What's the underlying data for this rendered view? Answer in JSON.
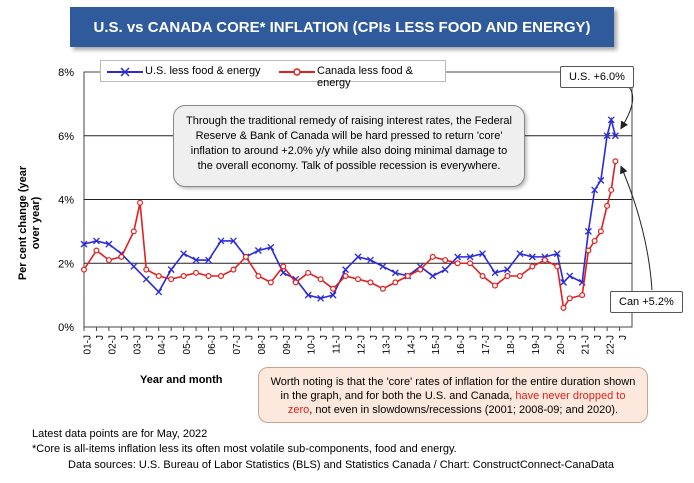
{
  "title": "U.S. vs CANADA CORE* INFLATION (CPIs LESS FOOD AND ENERGY)",
  "chart_data": {
    "type": "line",
    "title": "U.S. vs CANADA CORE* INFLATION (CPIs LESS FOOD AND ENERGY)",
    "ylabel": "Per cent change (year over year)",
    "xlabel": "Year and month",
    "ylim": [
      0,
      8
    ],
    "yticks": [
      "0%",
      "2%",
      "4%",
      "6%",
      "8%"
    ],
    "x_start": "2001-01",
    "x_end": "2022-05",
    "x_tick_labels": [
      "01-J",
      "J",
      "02-J",
      "J",
      "03-J",
      "J",
      "04-J",
      "J",
      "05-J",
      "J",
      "06-J",
      "J",
      "07-J",
      "J",
      "08-J",
      "J",
      "09-J",
      "J",
      "10-J",
      "J",
      "11-J",
      "J",
      "12-J",
      "J",
      "13-J",
      "J",
      "14-J",
      "J",
      "15-J",
      "J",
      "16-J",
      "J",
      "17-J",
      "J",
      "18-J",
      "J",
      "19-J",
      "J",
      "20-J",
      "J",
      "21-J",
      "J",
      "22-J",
      "J"
    ],
    "grid": true,
    "legend_position": "top-left",
    "series": [
      {
        "name": "U.S. less food & energy",
        "color": "#2a2ad8",
        "marker": "x",
        "x": [
          "2001-01",
          "2001-07",
          "2002-01",
          "2002-07",
          "2003-01",
          "2003-07",
          "2004-01",
          "2004-07",
          "2005-01",
          "2005-07",
          "2006-01",
          "2006-07",
          "2007-01",
          "2007-07",
          "2008-01",
          "2008-07",
          "2009-01",
          "2009-07",
          "2010-01",
          "2010-07",
          "2011-01",
          "2011-07",
          "2012-01",
          "2012-07",
          "2013-01",
          "2013-07",
          "2014-01",
          "2014-07",
          "2015-01",
          "2015-07",
          "2016-01",
          "2016-07",
          "2017-01",
          "2017-07",
          "2018-01",
          "2018-07",
          "2019-01",
          "2019-07",
          "2020-01",
          "2020-04",
          "2020-07",
          "2021-01",
          "2021-04",
          "2021-07",
          "2021-10",
          "2022-01",
          "2022-03",
          "2022-05"
        ],
        "values": [
          2.6,
          2.7,
          2.6,
          2.3,
          1.9,
          1.5,
          1.1,
          1.8,
          2.3,
          2.1,
          2.1,
          2.7,
          2.7,
          2.2,
          2.4,
          2.5,
          1.7,
          1.5,
          1.0,
          0.9,
          1.0,
          1.8,
          2.2,
          2.1,
          1.9,
          1.7,
          1.6,
          1.9,
          1.6,
          1.8,
          2.2,
          2.2,
          2.3,
          1.7,
          1.8,
          2.3,
          2.2,
          2.2,
          2.3,
          1.4,
          1.6,
          1.4,
          3.0,
          4.3,
          4.6,
          6.0,
          6.5,
          6.0
        ]
      },
      {
        "name": "Canada less food & energy",
        "color": "#e02020",
        "marker": "o",
        "x": [
          "2001-01",
          "2001-07",
          "2002-01",
          "2002-07",
          "2003-01",
          "2003-04",
          "2003-07",
          "2004-01",
          "2004-07",
          "2005-01",
          "2005-07",
          "2006-01",
          "2006-07",
          "2007-01",
          "2007-07",
          "2008-01",
          "2008-07",
          "2009-01",
          "2009-07",
          "2010-01",
          "2010-07",
          "2011-01",
          "2011-07",
          "2012-01",
          "2012-07",
          "2013-01",
          "2013-07",
          "2014-01",
          "2014-07",
          "2015-01",
          "2015-07",
          "2016-01",
          "2016-07",
          "2017-01",
          "2017-07",
          "2018-01",
          "2018-07",
          "2019-01",
          "2019-07",
          "2020-01",
          "2020-04",
          "2020-07",
          "2021-01",
          "2021-04",
          "2021-07",
          "2021-10",
          "2022-01",
          "2022-03",
          "2022-05"
        ],
        "values": [
          1.8,
          2.4,
          2.1,
          2.2,
          3.0,
          3.9,
          1.8,
          1.6,
          1.5,
          1.6,
          1.7,
          1.6,
          1.6,
          1.8,
          2.2,
          1.6,
          1.4,
          1.9,
          1.4,
          1.7,
          1.5,
          1.2,
          1.6,
          1.5,
          1.4,
          1.2,
          1.4,
          1.6,
          1.8,
          2.2,
          2.1,
          2.0,
          2.0,
          1.6,
          1.3,
          1.6,
          1.6,
          1.9,
          2.1,
          1.9,
          0.6,
          0.9,
          1.0,
          2.4,
          2.7,
          3.0,
          3.8,
          4.3,
          5.2
        ]
      }
    ],
    "annotations": [
      "U.S. +6.0%",
      "Can +5.2%"
    ]
  },
  "notes": {
    "note1": "Through the traditional remedy of raising interest rates, the Federal Reserve & Bank of Canada will be hard pressed to return 'core' inflation to around +2.0% y/y while also doing minimal damage to the overall economy. Talk of possible recession is everywhere.",
    "note2_a": "Worth noting is that the 'core' rates of inflation for the entire duration shown in the graph, and for both the U.S. and Canada, ",
    "note2_red": "have never dropped to zero",
    "note2_b": ", not even in slowdowns/recessions (2001; 2008-09; and 2020)."
  },
  "footer": {
    "line1": "Latest data points are for May, 2022",
    "line2": "*Core is all-items inflation less its often most volatile sub-components, food and energy.",
    "line3": "Data sources: U.S. Bureau of Labor Statistics (BLS) and Statistics Canada / Chart: ConstructConnect-CanaData"
  }
}
